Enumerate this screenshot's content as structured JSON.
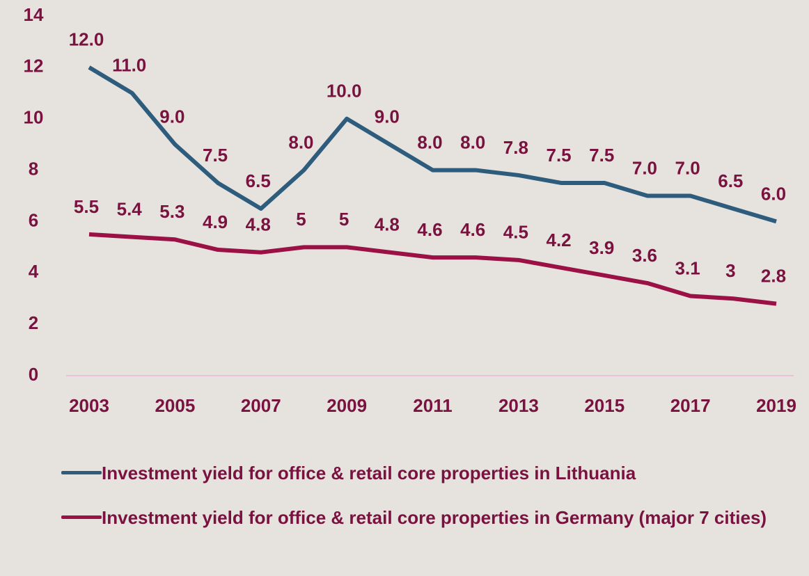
{
  "chart_data": {
    "type": "line",
    "x": [
      2003,
      2004,
      2005,
      2006,
      2007,
      2008,
      2009,
      2010,
      2011,
      2012,
      2013,
      2014,
      2015,
      2016,
      2017,
      2018,
      2019
    ],
    "xlim": [
      2003,
      2019
    ],
    "xticks": [
      2003,
      2005,
      2007,
      2009,
      2011,
      2013,
      2015,
      2017,
      2019
    ],
    "ylim": [
      0,
      14
    ],
    "yticks": [
      0,
      2,
      4,
      6,
      8,
      10,
      12,
      14
    ],
    "series": [
      {
        "name": "Investment yield for office & retail core properties in Lithuania",
        "color": "#2e5c7c",
        "values": [
          12,
          11,
          9,
          7.5,
          6.5,
          8,
          10,
          9,
          8,
          8,
          7.8,
          7.5,
          7.5,
          7,
          7,
          6.5,
          6
        ],
        "value_labels": [
          "12.0",
          "11.0",
          "9.0",
          "7.5",
          "6.5",
          "8.0",
          "10.0",
          "9.0",
          "8.0",
          "8.0",
          "7.8",
          "7.5",
          "7.5",
          "7.0",
          "7.0",
          "6.5",
          "6.0"
        ]
      },
      {
        "name": "Investment yield for office & retail core properties in Germany (major 7 cities)",
        "color": "#9b1045",
        "values": [
          5.5,
          5.4,
          5.3,
          4.9,
          4.8,
          5,
          5,
          4.8,
          4.6,
          4.6,
          4.5,
          4.2,
          3.9,
          3.6,
          3.1,
          3,
          2.8
        ]
      }
    ]
  }
}
